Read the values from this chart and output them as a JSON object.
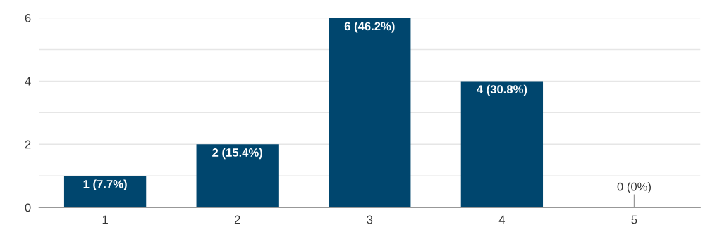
{
  "chart_data": {
    "type": "bar",
    "categories": [
      "1",
      "2",
      "3",
      "4",
      "5"
    ],
    "values": [
      1,
      2,
      6,
      4,
      0
    ],
    "color": "#00466e",
    "value_labels": [
      "1 (7.7%)",
      "2 (15.4%)",
      "6 (46.2%)",
      "4 (30.8%)",
      "0 (0%)"
    ],
    "ylim": [
      0,
      6
    ],
    "yticks": [
      0,
      {
        "value": 1,
        "label": null
      },
      2,
      {
        "value": 3,
        "label": null
      },
      4,
      {
        "value": 5,
        "label": null
      },
      6
    ],
    "grid": "y"
  }
}
